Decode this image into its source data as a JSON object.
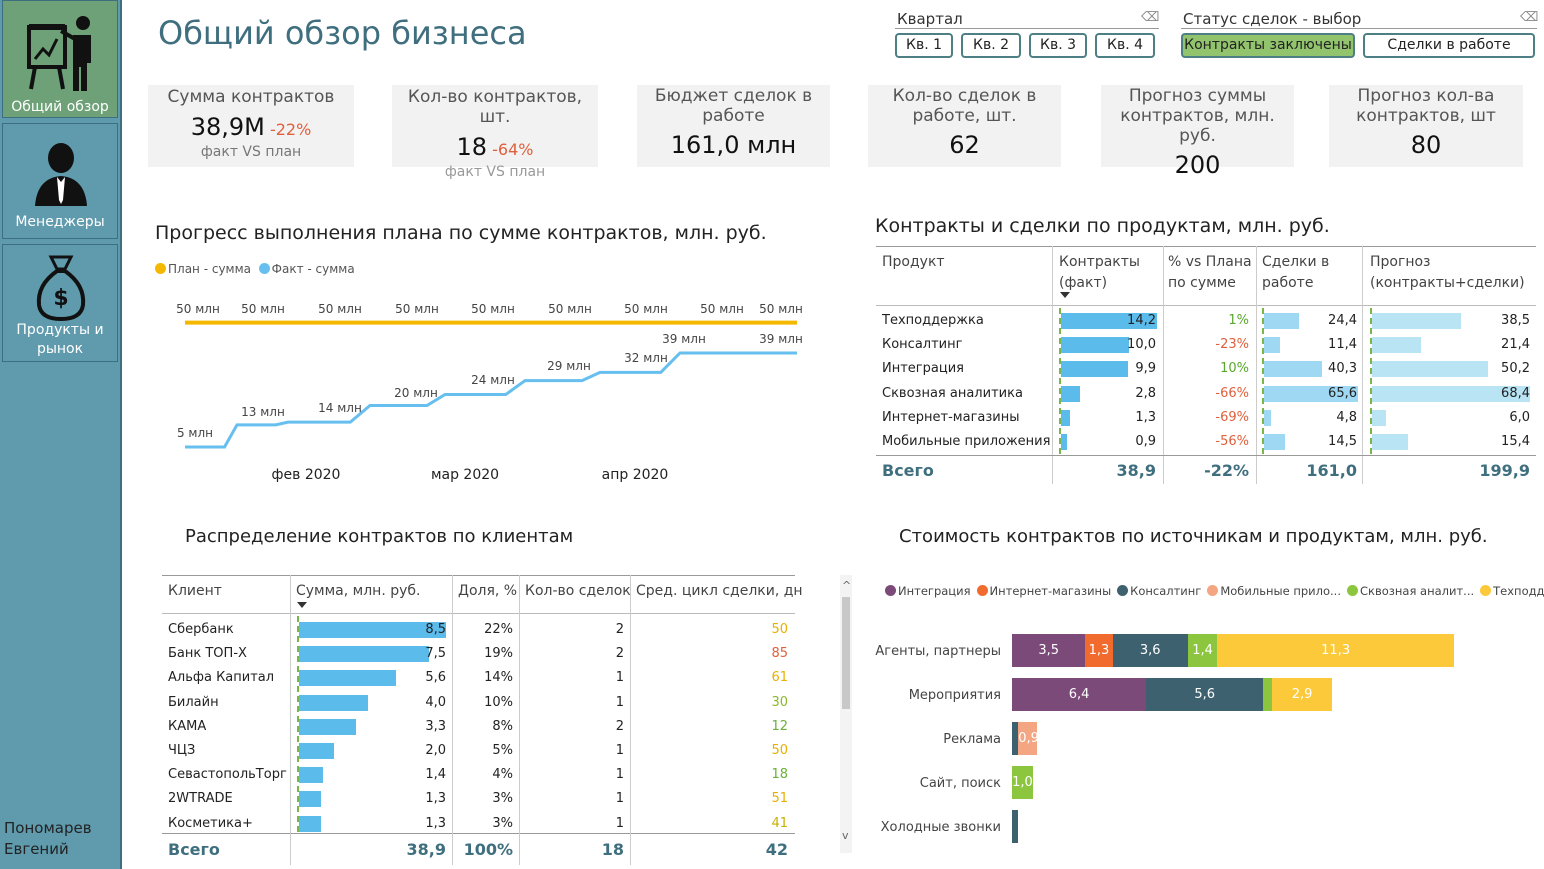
{
  "page_title": "Общий обзор бизнеса",
  "sidebar": {
    "items": [
      {
        "id": "overview",
        "label": "Общий обзор",
        "icon": "presentation-icon"
      },
      {
        "id": "managers",
        "label": "Менеджеры",
        "icon": "manager-icon"
      },
      {
        "id": "products",
        "label": "Продукты и рынок",
        "icon": "money-bag-icon"
      }
    ],
    "user": [
      "Пономарев",
      "Евгений"
    ]
  },
  "filters": {
    "quarter": {
      "label": "Квартал",
      "buttons": [
        "Кв. 1",
        "Кв. 2",
        "Кв. 3",
        "Кв. 4"
      ]
    },
    "status": {
      "label": "Статус сделок - выбор",
      "buttons": [
        "Контракты заключены",
        "Сделки в работе"
      ],
      "selected": 0
    },
    "eraser": "⌫"
  },
  "kpis": [
    {
      "title": "Сумма контрактов",
      "value": "38,9М",
      "change": "-22%",
      "sub": "факт VS план"
    },
    {
      "title": "Кол-во контрактов, шт.",
      "value": "18",
      "change": "-64%",
      "sub": "факт VS план"
    },
    {
      "title": "Бюджет сделок в работе",
      "value": "161,0 млн"
    },
    {
      "title": "Кол-во сделок в работе, шт.",
      "value": "62"
    },
    {
      "title": "Прогноз суммы контрактов, млн. руб.",
      "value": "200"
    },
    {
      "title": "Прогноз кол-ва контрактов, шт",
      "value": "80"
    }
  ],
  "progress": {
    "title": "Прогресс выполнения плана по сумме контрактов, млн. руб.",
    "legend": [
      "План - сумма",
      "Факт - сумма"
    ],
    "colors": {
      "plan": "#f5b800",
      "fact": "#66bfee"
    }
  },
  "chart_data": [
    {
      "type": "line",
      "title": "Прогресс выполнения плана по сумме контрактов, млн. руб.",
      "x_ticks": [
        "фев 2020",
        "мар 2020",
        "апр 2020"
      ],
      "series": [
        {
          "name": "План - сумма",
          "labels": [
            "50 млн",
            "50 млн",
            "50 млн",
            "50 млн",
            "50 млн",
            "50 млн",
            "50 млн",
            "50 млн",
            "50 млн"
          ],
          "values": [
            50,
            50,
            50,
            50,
            50,
            50,
            50,
            50,
            50
          ]
        },
        {
          "name": "Факт - сумма",
          "labels": [
            "5 млн",
            "13 млн",
            "14 млн",
            "20 млн",
            "24 млн",
            "29 млн",
            "32 млн",
            "39 млн",
            "39 млн"
          ],
          "values": [
            5,
            13,
            14,
            20,
            24,
            29,
            32,
            39,
            39
          ]
        }
      ]
    },
    {
      "type": "bar",
      "title": "Стоимость контрактов по источникам и продуктам, млн. руб.",
      "orientation": "horizontal",
      "stacked": true,
      "categories": [
        "Агенты, партнеры",
        "Мероприятия",
        "Реклама",
        "Сайт, поиск",
        "Холодные звонки"
      ],
      "series": [
        {
          "name": "Интеграция",
          "color": "#7b4a78",
          "values": [
            3.5,
            6.4,
            0,
            0,
            0
          ]
        },
        {
          "name": "Интернет-магазины",
          "color": "#f06b2d",
          "values": [
            1.3,
            0,
            0,
            0,
            0
          ]
        },
        {
          "name": "Консалтинг",
          "color": "#3e6170",
          "values": [
            3.6,
            5.6,
            0.3,
            0,
            0.3
          ]
        },
        {
          "name": "Мобильные прило...",
          "color": "#f4a582",
          "values": [
            0,
            0,
            0.9,
            0,
            0
          ]
        },
        {
          "name": "Сквозная аналит...",
          "color": "#8cc63e",
          "values": [
            1.4,
            0.4,
            0,
            1.0,
            0
          ]
        },
        {
          "name": "Техподдержка",
          "color": "#fcc93a",
          "values": [
            11.3,
            2.9,
            0,
            0,
            0
          ]
        }
      ],
      "data_labels": [
        [
          "3,5",
          "1,3",
          "3,6",
          "",
          "1,4",
          "11,3"
        ],
        [
          "6,4",
          "",
          "5,6",
          "",
          "",
          "2,9"
        ],
        [
          "",
          "",
          "",
          "0,9",
          "",
          ""
        ],
        [
          "",
          "",
          "",
          "",
          "1,0",
          ""
        ],
        [
          "",
          "",
          "",
          "",
          "",
          ""
        ]
      ]
    }
  ],
  "products": {
    "title": "Контракты и сделки по продуктам, млн. руб.",
    "headers": [
      "Продукт",
      "Контракты (факт)",
      "% vs Плана по сумме",
      "Сделки в работе",
      "Прогноз (контракты+сделки)"
    ],
    "rows": [
      {
        "name": "Техподдержка",
        "contracts": 14.2,
        "c": "14,2",
        "pct": "1%",
        "deals": 24.4,
        "d": "24,4",
        "forecast": 38.5,
        "f": "38,5"
      },
      {
        "name": "Консалтинг",
        "contracts": 10.0,
        "c": "10,0",
        "pct": "-23%",
        "deals": 11.4,
        "d": "11,4",
        "forecast": 21.4,
        "f": "21,4"
      },
      {
        "name": "Интеграция",
        "contracts": 9.9,
        "c": "9,9",
        "pct": "10%",
        "deals": 40.3,
        "d": "40,3",
        "forecast": 50.2,
        "f": "50,2"
      },
      {
        "name": "Сквозная аналитика",
        "contracts": 2.8,
        "c": "2,8",
        "pct": "-66%",
        "deals": 65.6,
        "d": "65,6",
        "forecast": 68.4,
        "f": "68,4"
      },
      {
        "name": "Интернет-магазины",
        "contracts": 1.3,
        "c": "1,3",
        "pct": "-69%",
        "deals": 4.8,
        "d": "4,8",
        "forecast": 6.0,
        "f": "6,0"
      },
      {
        "name": "Мобильные приложения",
        "contracts": 0.9,
        "c": "0,9",
        "pct": "-56%",
        "deals": 14.5,
        "d": "14,5",
        "forecast": 15.4,
        "f": "15,4"
      }
    ],
    "total": {
      "name": "Всего",
      "c": "38,9",
      "pct": "-22%",
      "d": "161,0",
      "f": "199,9"
    },
    "colors": {
      "contracts": "#5bbcec",
      "deals": "#9fd8f2",
      "forecast": "#b8e4f4",
      "pos": "#5aa82e",
      "neg": "#e0603c"
    }
  },
  "clients": {
    "title": "Распределение контрактов по клиентам",
    "headers": [
      "Клиент",
      "Сумма, млн. руб.",
      "Доля, %",
      "Кол-во сделок",
      "Сред. цикл сделки, дн"
    ],
    "rows": [
      {
        "name": "Сбербанк",
        "sum": 8.5,
        "s": "8,5",
        "share": "22%",
        "count": "2",
        "cycle": "50",
        "cc": "#e8b000"
      },
      {
        "name": "Банк ТОП-Х",
        "sum": 7.5,
        "s": "7,5",
        "share": "19%",
        "count": "2",
        "cycle": "85",
        "cc": "#e0603c"
      },
      {
        "name": "Альфа Капитал",
        "sum": 5.6,
        "s": "5,6",
        "share": "14%",
        "count": "1",
        "cycle": "61",
        "cc": "#e8b000"
      },
      {
        "name": "Билайн",
        "sum": 4.0,
        "s": "4,0",
        "share": "10%",
        "count": "1",
        "cycle": "30",
        "cc": "#8cb82e"
      },
      {
        "name": "КАМА",
        "sum": 3.3,
        "s": "3,3",
        "share": "8%",
        "count": "2",
        "cycle": "12",
        "cc": "#6bb03a"
      },
      {
        "name": "ЧЦЗ",
        "sum": 2.0,
        "s": "2,0",
        "share": "5%",
        "count": "1",
        "cycle": "50",
        "cc": "#e8b000"
      },
      {
        "name": "СевастопольТорг",
        "sum": 1.4,
        "s": "1,4",
        "share": "4%",
        "count": "1",
        "cycle": "18",
        "cc": "#6bb03a"
      },
      {
        "name": "2WTRADE",
        "sum": 1.3,
        "s": "1,3",
        "share": "3%",
        "count": "1",
        "cycle": "51",
        "cc": "#e8b000"
      },
      {
        "name": "Косметика+",
        "sum": 1.3,
        "s": "1,3",
        "share": "3%",
        "count": "1",
        "cycle": "41",
        "cc": "#c8b000"
      }
    ],
    "total": {
      "name": "Всего",
      "s": "38,9",
      "share": "100%",
      "count": "18",
      "cycle": "42"
    },
    "scroll_up": "^",
    "scroll_down": "v"
  },
  "sources_title": "Стоимость контрактов по источникам и продуктам, млн. руб."
}
